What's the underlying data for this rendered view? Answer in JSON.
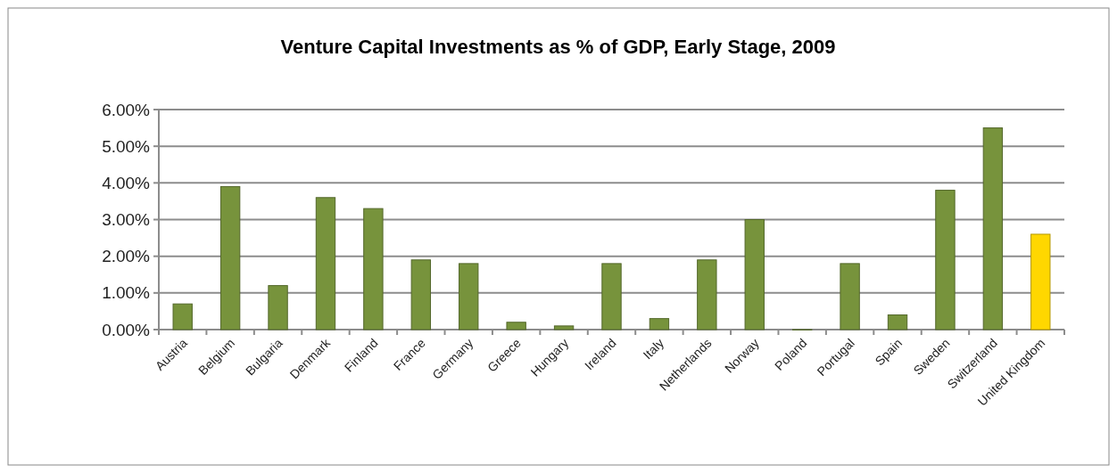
{
  "chart_data": {
    "type": "bar",
    "title": "Venture Capital Investments as % of GDP, Early Stage, 2009",
    "categories": [
      "Austria",
      "Belgium",
      "Bulgaria",
      "Denmark",
      "Finland",
      "France",
      "Germany",
      "Greece",
      "Hungary",
      "Ireland",
      "Italy",
      "Netherlands",
      "Norway",
      "Poland",
      "Portugal",
      "Spain",
      "Sweden",
      "Switzerland",
      "United Kingdom"
    ],
    "values": [
      0.7,
      3.9,
      1.2,
      3.6,
      3.3,
      1.9,
      1.8,
      0.2,
      0.1,
      1.8,
      0.3,
      1.9,
      3.0,
      0,
      1.8,
      0.4,
      3.8,
      5.5,
      2.6
    ],
    "colors": [
      "#77933c",
      "#77933c",
      "#77933c",
      "#77933c",
      "#77933c",
      "#77933c",
      "#77933c",
      "#77933c",
      "#77933c",
      "#77933c",
      "#77933c",
      "#77933c",
      "#77933c",
      "#77933c",
      "#77933c",
      "#77933c",
      "#77933c",
      "#77933c",
      "#ffd700"
    ],
    "ylim": [
      0,
      6
    ],
    "yticks": [
      {
        "value": 0,
        "label": "0.00%"
      },
      {
        "value": 1,
        "label": "1.00%"
      },
      {
        "value": 2,
        "label": "2.00%"
      },
      {
        "value": 3,
        "label": "3.00%"
      },
      {
        "value": 4,
        "label": "4.00%"
      },
      {
        "value": 5,
        "label": "5.00%"
      },
      {
        "value": 6,
        "label": "6.00%"
      }
    ],
    "grid": "y"
  }
}
